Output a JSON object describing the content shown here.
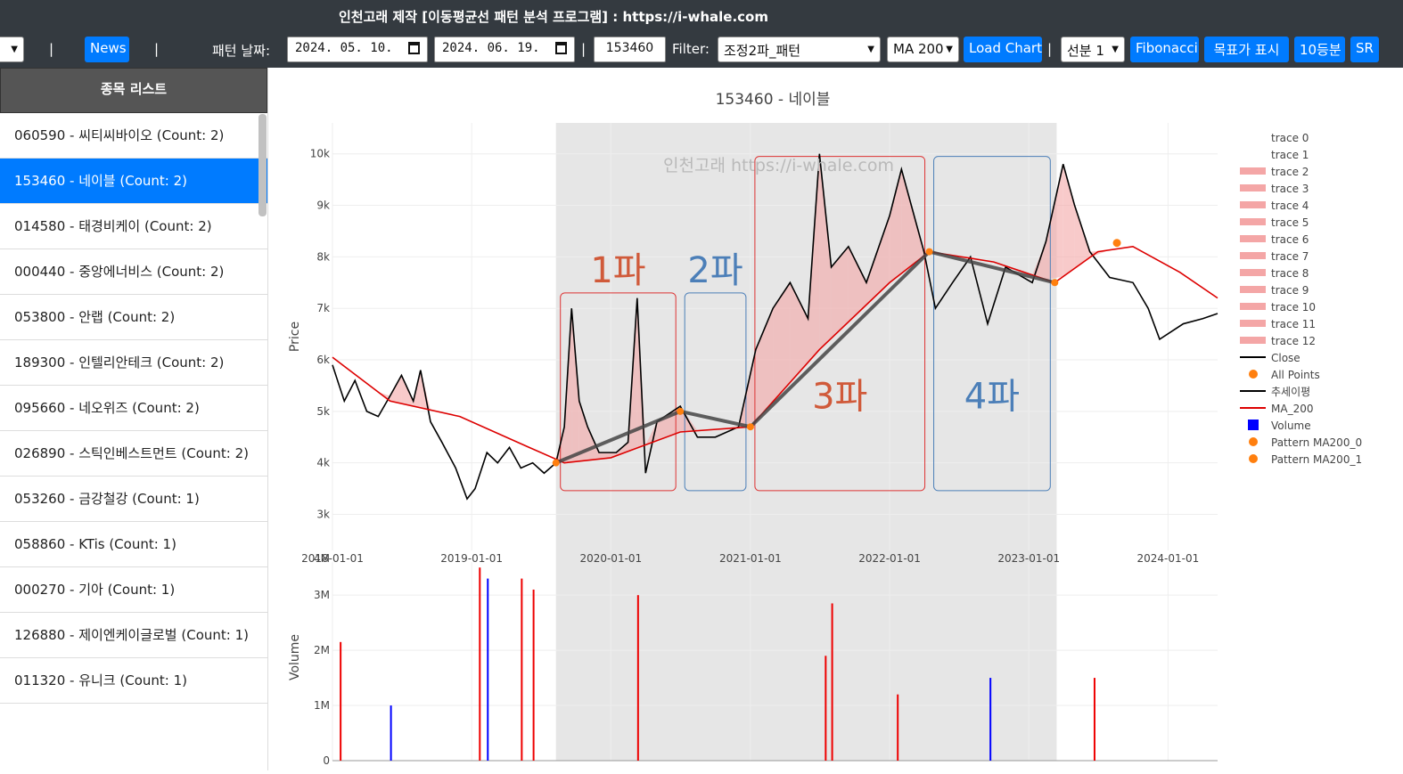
{
  "header": {
    "title": "인천고래 제작 [이동평균선 패턴 분석 프로그램] : https://i-whale.com"
  },
  "toolbar": {
    "news_label": "News",
    "separator": "|",
    "pattern_date_label": "패턴 날짜:",
    "date_start": "2024. 05. 10.",
    "date_end": "2024. 06. 19.",
    "code_value": "153460",
    "filter_label": "Filter:",
    "filter_value": "조정2파_패턴",
    "ma_value": "MA 200",
    "load_chart_label": "Load Chart",
    "line_value": "선분 1",
    "fibonacci_label": "Fibonacci",
    "target_label": "목표가 표시",
    "ten_label": "10등분",
    "sr_label": "SR"
  },
  "sidebar": {
    "title": "종목 리스트",
    "items": [
      {
        "label": "060590 - 씨티씨바이오 (Count: 2)",
        "active": false
      },
      {
        "label": "153460 - 네이블 (Count: 2)",
        "active": true
      },
      {
        "label": "014580 - 태경비케이 (Count: 2)",
        "active": false
      },
      {
        "label": "000440 - 중앙에너비스 (Count: 2)",
        "active": false
      },
      {
        "label": "053800 - 안랩 (Count: 2)",
        "active": false
      },
      {
        "label": "189300 - 인텔리안테크 (Count: 2)",
        "active": false
      },
      {
        "label": "095660 - 네오위즈 (Count: 2)",
        "active": false
      },
      {
        "label": "026890 - 스틱인베스트먼트 (Count: 2)",
        "active": false
      },
      {
        "label": "053260 - 금강철강 (Count: 1)",
        "active": false
      },
      {
        "label": "058860 - KTis (Count: 1)",
        "active": false
      },
      {
        "label": "000270 - 기아 (Count: 1)",
        "active": false
      },
      {
        "label": "126880 - 제이엔케이글로벌 (Count: 1)",
        "active": false
      },
      {
        "label": "011320 - 유니크 (Count: 1)",
        "active": false
      }
    ]
  },
  "chart_data": {
    "type": "line",
    "title": "153460 - 네이블",
    "watermark": "인천고래 https://i-whale.com",
    "ylabel": "Price",
    "ylabel2": "Volume",
    "ylim": [
      2300,
      10600
    ],
    "y2lim": [
      0,
      3600000
    ],
    "xlim": [
      "2018-01-01",
      "2024-05-10"
    ],
    "x_ticks": [
      "2018-01-01",
      "2019-01-01",
      "2020-01-01",
      "2021-01-01",
      "2022-01-01",
      "2023-01-01",
      "2024-01-01"
    ],
    "y_ticks": [
      {
        "v": 3000,
        "t": "3k"
      },
      {
        "v": 4000,
        "t": "4k"
      },
      {
        "v": 5000,
        "t": "5k"
      },
      {
        "v": 6000,
        "t": "6k"
      },
      {
        "v": 7000,
        "t": "7k"
      },
      {
        "v": 8000,
        "t": "8k"
      },
      {
        "v": 9000,
        "t": "9k"
      },
      {
        "v": 10000,
        "t": "10k"
      }
    ],
    "y2_ticks": [
      {
        "v": 0,
        "t": "0"
      },
      {
        "v": 1000000,
        "t": "1M"
      },
      {
        "v": 2000000,
        "t": "2M"
      },
      {
        "v": 3000000,
        "t": "3M"
      },
      {
        "v": 4000000,
        "t": "4M"
      }
    ],
    "shaded_range": [
      "2019-08-10",
      "2023-03-15"
    ],
    "close": [
      [
        "2018-01-01",
        5900
      ],
      [
        "2018-02-01",
        5200
      ],
      [
        "2018-03-01",
        5600
      ],
      [
        "2018-04-01",
        5000
      ],
      [
        "2018-05-01",
        4900
      ],
      [
        "2018-06-01",
        5300
      ],
      [
        "2018-07-01",
        5700
      ],
      [
        "2018-08-01",
        5200
      ],
      [
        "2018-08-20",
        5800
      ],
      [
        "2018-09-15",
        4800
      ],
      [
        "2018-10-15",
        4400
      ],
      [
        "2018-11-20",
        3900
      ],
      [
        "2018-12-20",
        3300
      ],
      [
        "2019-01-10",
        3500
      ],
      [
        "2019-02-10",
        4200
      ],
      [
        "2019-03-10",
        4000
      ],
      [
        "2019-04-10",
        4300
      ],
      [
        "2019-05-10",
        3900
      ],
      [
        "2019-06-10",
        4000
      ],
      [
        "2019-07-10",
        3800
      ],
      [
        "2019-08-10",
        4000
      ],
      [
        "2019-09-01",
        4700
      ],
      [
        "2019-09-20",
        7000
      ],
      [
        "2019-10-10",
        5200
      ],
      [
        "2019-11-01",
        4700
      ],
      [
        "2019-12-01",
        4200
      ],
      [
        "2020-01-15",
        4200
      ],
      [
        "2020-02-15",
        4400
      ],
      [
        "2020-03-10",
        7200
      ],
      [
        "2020-04-01",
        3800
      ],
      [
        "2020-05-01",
        4800
      ],
      [
        "2020-07-01",
        5100
      ],
      [
        "2020-08-15",
        4500
      ],
      [
        "2020-10-01",
        4500
      ],
      [
        "2020-12-01",
        4700
      ],
      [
        "2021-01-15",
        6200
      ],
      [
        "2021-03-01",
        7000
      ],
      [
        "2021-04-15",
        7500
      ],
      [
        "2021-06-01",
        6800
      ],
      [
        "2021-07-01",
        10000
      ],
      [
        "2021-08-01",
        7800
      ],
      [
        "2021-09-15",
        8200
      ],
      [
        "2021-11-01",
        7500
      ],
      [
        "2022-01-01",
        8800
      ],
      [
        "2022-02-01",
        9700
      ],
      [
        "2022-04-01",
        8100
      ],
      [
        "2022-05-01",
        7000
      ],
      [
        "2022-06-15",
        7500
      ],
      [
        "2022-08-01",
        8000
      ],
      [
        "2022-09-15",
        6700
      ],
      [
        "2022-11-01",
        7800
      ],
      [
        "2023-01-10",
        7500
      ],
      [
        "2023-02-15",
        8300
      ],
      [
        "2023-04-01",
        9800
      ],
      [
        "2023-05-01",
        9000
      ],
      [
        "2023-06-10",
        8100
      ],
      [
        "2023-08-01",
        7600
      ],
      [
        "2023-10-01",
        7500
      ],
      [
        "2023-11-10",
        7000
      ],
      [
        "2023-12-10",
        6400
      ],
      [
        "2024-02-10",
        6700
      ],
      [
        "2024-04-01",
        6800
      ],
      [
        "2024-05-10",
        6900
      ]
    ],
    "ma_200": [
      [
        "2018-01-01",
        6050
      ],
      [
        "2018-06-01",
        5200
      ],
      [
        "2018-12-01",
        4900
      ],
      [
        "2019-06-01",
        4300
      ],
      [
        "2019-09-01",
        4000
      ],
      [
        "2020-01-01",
        4100
      ],
      [
        "2020-07-01",
        4600
      ],
      [
        "2021-01-01",
        4700
      ],
      [
        "2021-07-01",
        6200
      ],
      [
        "2022-01-01",
        7500
      ],
      [
        "2022-04-15",
        8100
      ],
      [
        "2022-10-01",
        7900
      ],
      [
        "2023-03-10",
        7500
      ],
      [
        "2023-07-01",
        8100
      ],
      [
        "2023-10-01",
        8200
      ],
      [
        "2024-02-01",
        7700
      ],
      [
        "2024-05-10",
        7200
      ]
    ],
    "trend_line": [
      [
        "2019-08-10",
        4000
      ],
      [
        "2020-07-01",
        5000
      ],
      [
        "2021-01-01",
        4700
      ],
      [
        "2022-04-15",
        8100
      ],
      [
        "2023-03-10",
        7500
      ]
    ],
    "pattern_ma200_points": [
      [
        "2023-08-20",
        8270
      ]
    ],
    "volume_spikes": [
      [
        "2019-01-20",
        3500000,
        "red"
      ],
      [
        "2019-02-10",
        3300000,
        "blue"
      ],
      [
        "2019-05-10",
        3300000,
        "red"
      ],
      [
        "2019-06-10",
        3100000,
        "red"
      ],
      [
        "2018-01-20",
        2150000,
        "red"
      ],
      [
        "2020-03-10",
        3000000,
        "red"
      ],
      [
        "2021-08-01",
        2850000,
        "red"
      ],
      [
        "2021-07-15",
        1900000,
        "red"
      ],
      [
        "2023-06-20",
        1500000,
        "red"
      ],
      [
        "2022-09-20",
        1500000,
        "blue"
      ],
      [
        "2022-01-20",
        1200000,
        "red"
      ],
      [
        "2018-06-01",
        1000000,
        "blue"
      ]
    ],
    "wave_labels": [
      {
        "label": "1파",
        "color": "#d05a3a"
      },
      {
        "label": "2파",
        "color": "#4c7fb8"
      },
      {
        "label": "3파",
        "color": "#d05a3a"
      },
      {
        "label": "4파",
        "color": "#4c7fb8"
      }
    ],
    "legend": [
      {
        "name": "trace 0",
        "kind": "none"
      },
      {
        "name": "trace 1",
        "kind": "none"
      },
      {
        "name": "trace 2",
        "kind": "band"
      },
      {
        "name": "trace 3",
        "kind": "band"
      },
      {
        "name": "trace 4",
        "kind": "band"
      },
      {
        "name": "trace 5",
        "kind": "band"
      },
      {
        "name": "trace 6",
        "kind": "band"
      },
      {
        "name": "trace 7",
        "kind": "band"
      },
      {
        "name": "trace 8",
        "kind": "band"
      },
      {
        "name": "trace 9",
        "kind": "band"
      },
      {
        "name": "trace 10",
        "kind": "band"
      },
      {
        "name": "trace 11",
        "kind": "band"
      },
      {
        "name": "trace 12",
        "kind": "band"
      },
      {
        "name": "Close",
        "kind": "line-black"
      },
      {
        "name": "All Points",
        "kind": "dot"
      },
      {
        "name": "추세이평",
        "kind": "line-black"
      },
      {
        "name": "MA_200",
        "kind": "line-red"
      },
      {
        "name": "Volume",
        "kind": "square-blue"
      },
      {
        "name": "Pattern MA200_0",
        "kind": "dot"
      },
      {
        "name": "Pattern MA200_1",
        "kind": "dot"
      }
    ],
    "colors": {
      "close": "#000000",
      "ma": "#dd0000",
      "band": "#f4a6a6",
      "dot": "#ff7f0e",
      "shade": "#e6e6e6",
      "red_box": "#d33",
      "blue_box": "#4c7fb8"
    }
  }
}
